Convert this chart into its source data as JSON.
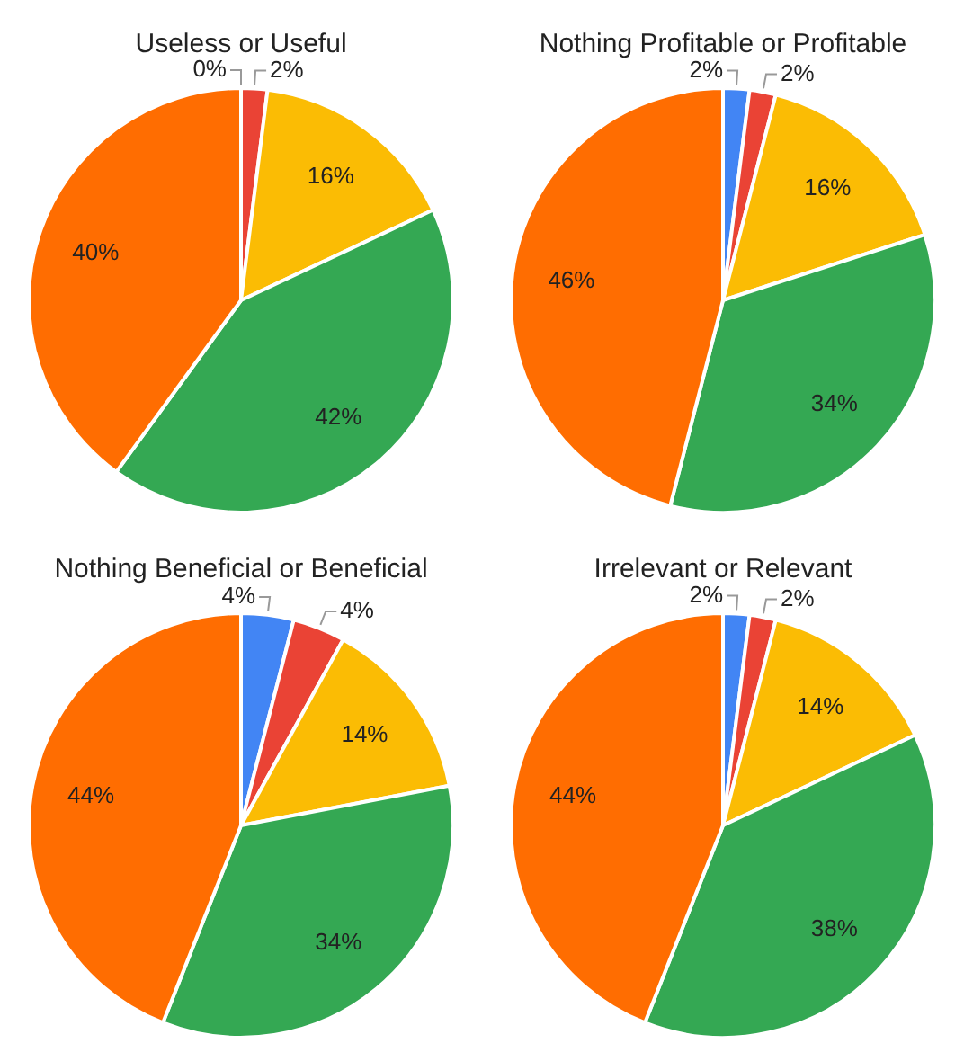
{
  "chart_data": [
    {
      "type": "pie",
      "title": "Useless or Useful",
      "categories": [
        null,
        null,
        null,
        null,
        null
      ],
      "values": [
        0,
        2,
        16,
        42,
        40
      ],
      "colors": [
        "#4285f4",
        "#ea4335",
        "#fbbc04",
        "#34a853",
        "#ff6d01"
      ],
      "value_labels": [
        "0%",
        "2%",
        "16%",
        "42%",
        "40%"
      ],
      "legend": false
    },
    {
      "type": "pie",
      "title": "Nothing Profitable or Profitable",
      "categories": [
        null,
        null,
        null,
        null,
        null
      ],
      "values": [
        2,
        2,
        16,
        34,
        46
      ],
      "colors": [
        "#4285f4",
        "#ea4335",
        "#fbbc04",
        "#34a853",
        "#ff6d01"
      ],
      "value_labels": [
        "2%",
        "2%",
        "16%",
        "34%",
        "46%"
      ],
      "legend": false
    },
    {
      "type": "pie",
      "title": "Nothing Beneficial or Beneficial",
      "categories": [
        null,
        null,
        null,
        null,
        null
      ],
      "values": [
        4,
        4,
        14,
        34,
        44
      ],
      "colors": [
        "#4285f4",
        "#ea4335",
        "#fbbc04",
        "#34a853",
        "#ff6d01"
      ],
      "value_labels": [
        "4%",
        "4%",
        "14%",
        "34%",
        "44%"
      ],
      "legend": false
    },
    {
      "type": "pie",
      "title": "Irrelevant or Relevant",
      "categories": [
        null,
        null,
        null,
        null,
        null
      ],
      "values": [
        2,
        2,
        14,
        38,
        44
      ],
      "colors": [
        "#4285f4",
        "#ea4335",
        "#fbbc04",
        "#34a853",
        "#ff6d01"
      ],
      "value_labels": [
        "2%",
        "2%",
        "14%",
        "38%",
        "44%"
      ],
      "legend": false
    }
  ]
}
